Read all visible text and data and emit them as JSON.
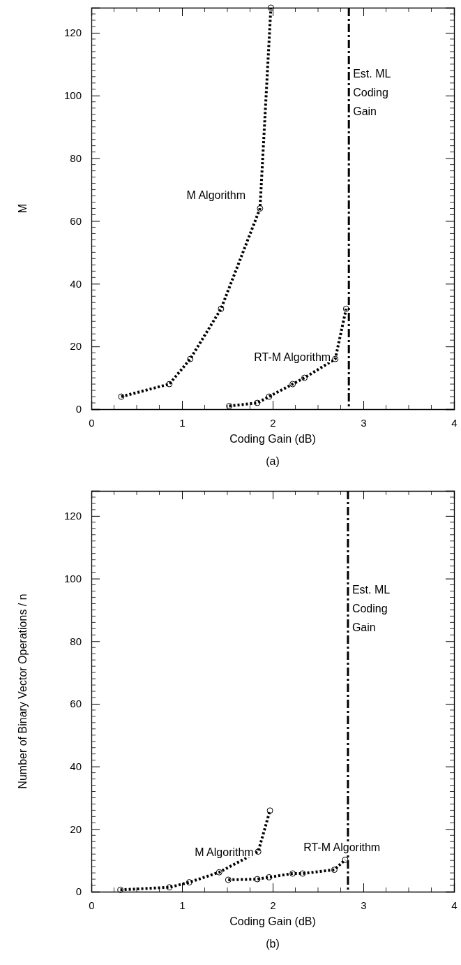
{
  "chart_data": [
    {
      "type": "line",
      "title": "(a)",
      "xlabel": "Coding Gain (dB)",
      "ylabel": "M",
      "xlim": [
        0,
        4
      ],
      "xticks": [
        0,
        1,
        2,
        3,
        4
      ],
      "ylim": [
        0,
        128
      ],
      "yticks": [
        0,
        20,
        40,
        60,
        80,
        100,
        120
      ],
      "marker": "circle",
      "line_style": "dotted",
      "series": [
        {
          "name": "M Algorithm",
          "color": "#000000",
          "x": [
            0.33,
            0.86,
            1.09,
            1.43,
            1.86,
            1.98
          ],
          "values": [
            4,
            8,
            16,
            32,
            64,
            128
          ]
        },
        {
          "name": "RT-M Algorithm",
          "color": "#000000",
          "x": [
            1.52,
            1.83,
            1.96,
            2.22,
            2.35,
            2.69,
            2.81
          ],
          "values": [
            1,
            2,
            4,
            8,
            10,
            16,
            32
          ]
        }
      ],
      "ref_lines": [
        {
          "axis": "x",
          "value": 2.84,
          "label": "Est. ML Coding Gain",
          "color": "#000000"
        }
      ]
    },
    {
      "type": "line",
      "title": "(b)",
      "xlabel": "Coding Gain (dB)",
      "ylabel": "Number of Binary Vector Operations / n",
      "xlim": [
        0,
        4
      ],
      "xticks": [
        0,
        1,
        2,
        3,
        4
      ],
      "ylim": [
        0,
        128
      ],
      "yticks": [
        0,
        20,
        40,
        60,
        80,
        100,
        120
      ],
      "marker": "circle",
      "line_style": "dotted",
      "series": [
        {
          "name": "M Algorithm",
          "color": "#000000",
          "x": [
            0.32,
            0.86,
            1.08,
            1.41,
            1.84,
            1.97
          ],
          "values": [
            0.6,
            1.4,
            3,
            6.2,
            12.8,
            25.9
          ]
        },
        {
          "name": "RT-M Algorithm",
          "color": "#000000",
          "x": [
            1.51,
            1.83,
            1.96,
            2.22,
            2.33,
            2.68,
            2.8
          ],
          "values": [
            3.8,
            4,
            4.6,
            5.8,
            5.8,
            7,
            10.2
          ]
        }
      ],
      "ref_lines": [
        {
          "axis": "x",
          "value": 2.83,
          "label": "Est. ML Coding Gain",
          "color": "#000000"
        }
      ]
    }
  ]
}
